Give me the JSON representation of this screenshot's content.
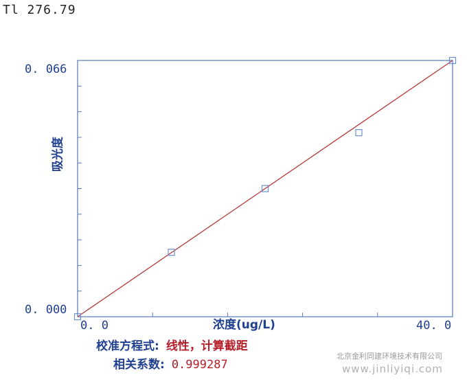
{
  "header": {
    "title": "Tl 276.79"
  },
  "chart_data": {
    "type": "line",
    "title": "Tl 276.79",
    "xlabel": "浓度(ug/L)",
    "ylabel": "吸光度",
    "xlim": [
      0.0,
      40.0
    ],
    "ylim": [
      0.0,
      0.066
    ],
    "x_tick_labels": [
      "0. 0",
      "40. 0"
    ],
    "y_tick_labels": [
      "0. 000",
      "0. 066"
    ],
    "points": [
      {
        "x": 0.0,
        "y": 0.0
      },
      {
        "x": 10.0,
        "y": 0.0166
      },
      {
        "x": 20.0,
        "y": 0.033
      },
      {
        "x": 30.0,
        "y": 0.0474
      },
      {
        "x": 40.0,
        "y": 0.066
      }
    ],
    "fit_line": {
      "x": [
        0.0,
        40.0
      ],
      "y": [
        0.0,
        0.066
      ]
    },
    "grid": false,
    "colors": {
      "axis": "#5577bb",
      "fit": "#b33a3a",
      "marker": "#6a8fd0",
      "label": "#1f3f8f"
    }
  },
  "info": {
    "equation_label": "校准方程式:",
    "equation_value": "线性，计算截距",
    "correlation_label": "相关系数:",
    "correlation_value": "0.999287"
  },
  "watermark": {
    "company": "北京金利同建环境技术有限公司",
    "url": "www.jinliyiqi.com"
  }
}
